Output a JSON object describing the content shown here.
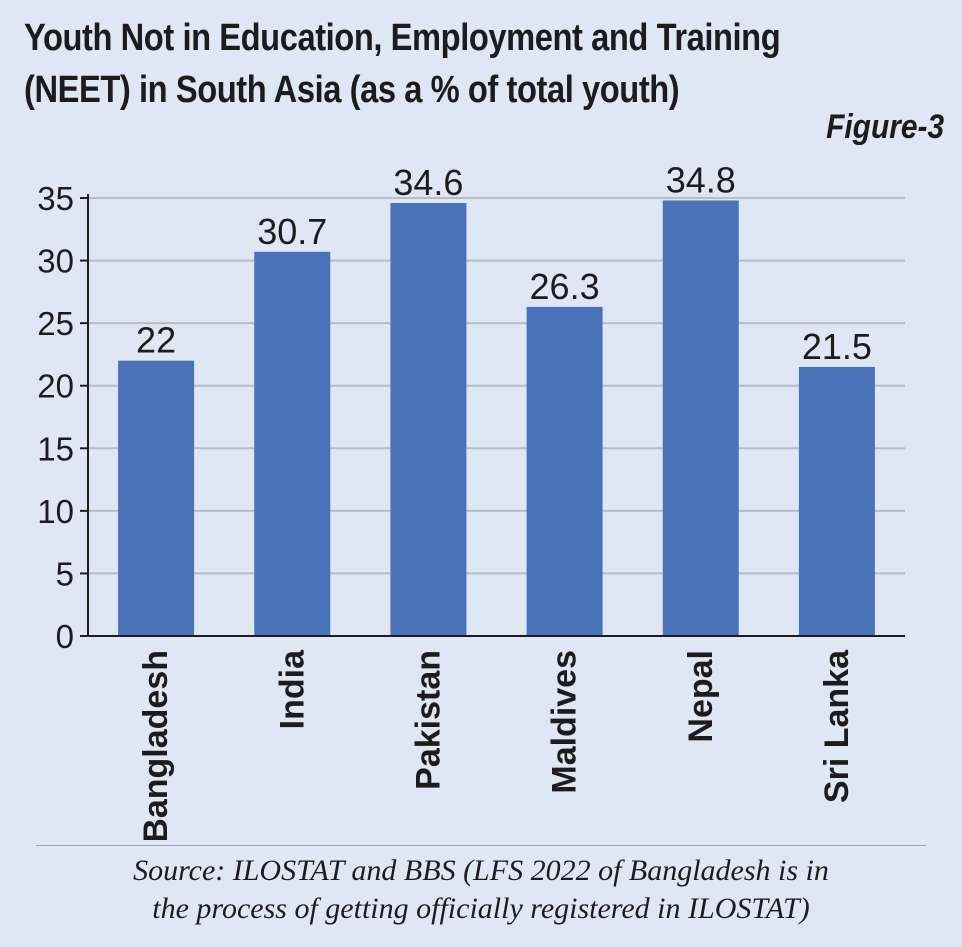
{
  "title_line1": "Youth Not in Education, Employment and Training",
  "title_line2": "(NEET) in South Asia (as a % of total youth)",
  "figure_label": "Figure-3",
  "source_line1": "Source: ILOSTAT and BBS (LFS 2022 of Bangladesh is in",
  "source_line2": "the process of getting officially registered in ILOSTAT)",
  "chart_data": {
    "type": "bar",
    "title": "Youth Not in Education, Employment and Training (NEET) in South Asia (as a % of total youth)",
    "categories": [
      "Bangladesh",
      "India",
      "Pakistan",
      "Maldives",
      "Nepal",
      "Sri Lanka"
    ],
    "values": [
      22,
      30.7,
      34.6,
      26.3,
      34.8,
      21.5
    ],
    "value_labels": [
      "22",
      "30.7",
      "34.6",
      "26.3",
      "34.8",
      "21.5"
    ],
    "yticks": [
      "0",
      "5",
      "10",
      "15",
      "20",
      "25",
      "30",
      "35"
    ],
    "ylim": [
      0,
      35
    ],
    "xlabel": "",
    "ylabel": "",
    "grid": true,
    "bar_color": "#4a72b8",
    "grid_color": "#b8bcc4"
  }
}
